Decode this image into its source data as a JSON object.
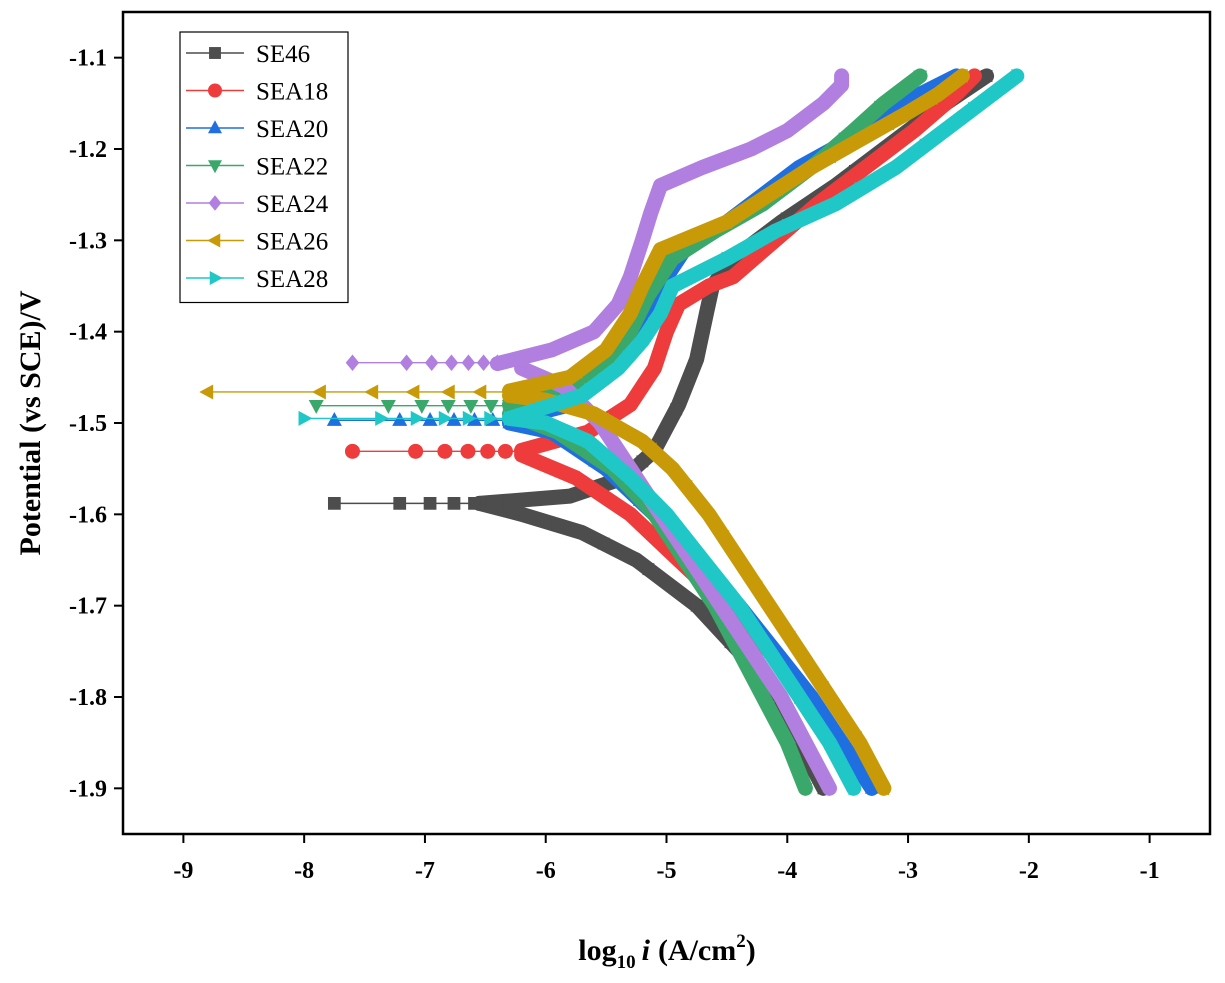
{
  "chart_data": {
    "type": "line",
    "title": "",
    "xlabel": {
      "prefix": "log",
      "sub": "10",
      "italic": "i",
      "unit_open": "(A/cm",
      "sup": "2",
      "unit_close": ")"
    },
    "ylabel": "Potential (vs SCE)/V",
    "xlim": [
      -9.5,
      -0.5
    ],
    "ylim": [
      -1.95,
      -1.05
    ],
    "x_ticks": [
      -9,
      -8,
      -7,
      -6,
      -5,
      -4,
      -3,
      -2,
      -1
    ],
    "x_tick_labels": [
      "-9",
      "-8",
      "-7",
      "-6",
      "-5",
      "-4",
      "-3",
      "-2",
      "-1"
    ],
    "y_ticks": [
      -1.1,
      -1.2,
      -1.3,
      -1.4,
      -1.5,
      -1.6,
      -1.7,
      -1.8,
      -1.9
    ],
    "y_tick_labels": [
      "-1.1",
      "-1.2",
      "-1.3",
      "-1.4",
      "-1.5",
      "-1.6",
      "-1.7",
      "-1.8",
      "-1.9"
    ],
    "legend_position": "top-left",
    "series": [
      {
        "name": "SE46",
        "color": "#4d4d4d",
        "marker": "square",
        "cathodic": [
          [
            -1.9,
            -3.7
          ],
          [
            -1.85,
            -3.9
          ],
          [
            -1.8,
            -4.15
          ],
          [
            -1.75,
            -4.4
          ],
          [
            -1.7,
            -4.75
          ],
          [
            -1.65,
            -5.25
          ],
          [
            -1.62,
            -5.7
          ],
          [
            -1.6,
            -6.2
          ],
          [
            -1.588,
            -6.55
          ]
        ],
        "anodic": [
          [
            -1.588,
            -6.55
          ],
          [
            -1.58,
            -5.8
          ],
          [
            -1.56,
            -5.35
          ],
          [
            -1.53,
            -5.1
          ],
          [
            -1.48,
            -4.9
          ],
          [
            -1.43,
            -4.75
          ],
          [
            -1.38,
            -4.67
          ],
          [
            -1.35,
            -4.62
          ],
          [
            -1.32,
            -4.45
          ],
          [
            -1.28,
            -4.05
          ],
          [
            -1.24,
            -3.6
          ],
          [
            -1.2,
            -3.2
          ],
          [
            -1.16,
            -2.8
          ],
          [
            -1.12,
            -2.35
          ]
        ],
        "spike": {
          "y": -1.588,
          "x_from": -7.75,
          "x_to": -6.3
        }
      },
      {
        "name": "SEA18",
        "color": "#ee3c3c",
        "marker": "circle",
        "cathodic": [
          [
            -1.9,
            -3.3
          ],
          [
            -1.85,
            -3.55
          ],
          [
            -1.8,
            -3.85
          ],
          [
            -1.75,
            -4.15
          ],
          [
            -1.7,
            -4.5
          ],
          [
            -1.65,
            -4.9
          ],
          [
            -1.6,
            -5.3
          ],
          [
            -1.56,
            -5.75
          ],
          [
            -1.535,
            -6.2
          ]
        ],
        "anodic": [
          [
            -1.53,
            -6.2
          ],
          [
            -1.51,
            -5.65
          ],
          [
            -1.48,
            -5.3
          ],
          [
            -1.44,
            -5.1
          ],
          [
            -1.4,
            -5.0
          ],
          [
            -1.37,
            -4.9
          ],
          [
            -1.35,
            -4.65
          ],
          [
            -1.34,
            -4.45
          ],
          [
            -1.3,
            -4.1
          ],
          [
            -1.26,
            -3.75
          ],
          [
            -1.22,
            -3.35
          ],
          [
            -1.18,
            -2.95
          ],
          [
            -1.14,
            -2.6
          ],
          [
            -1.12,
            -2.45
          ]
        ],
        "spike": {
          "y": -1.531,
          "x_from": -7.6,
          "x_to": -6.2
        }
      },
      {
        "name": "SEA20",
        "color": "#1f6fe0",
        "marker": "triangle-up",
        "cathodic": [
          [
            -1.9,
            -3.3
          ],
          [
            -1.85,
            -3.55
          ],
          [
            -1.8,
            -3.8
          ],
          [
            -1.75,
            -4.1
          ],
          [
            -1.7,
            -4.4
          ],
          [
            -1.65,
            -4.75
          ],
          [
            -1.6,
            -5.1
          ],
          [
            -1.55,
            -5.5
          ],
          [
            -1.51,
            -5.95
          ],
          [
            -1.5,
            -6.3
          ]
        ],
        "anodic": [
          [
            -1.497,
            -6.3
          ],
          [
            -1.48,
            -5.8
          ],
          [
            -1.45,
            -5.5
          ],
          [
            -1.42,
            -5.3
          ],
          [
            -1.38,
            -5.15
          ],
          [
            -1.34,
            -5.0
          ],
          [
            -1.31,
            -4.85
          ],
          [
            -1.29,
            -4.6
          ],
          [
            -1.26,
            -4.3
          ],
          [
            -1.22,
            -3.9
          ],
          [
            -1.18,
            -3.35
          ],
          [
            -1.14,
            -2.9
          ],
          [
            -1.12,
            -2.6
          ]
        ],
        "spike": {
          "y": -1.497,
          "x_from": -7.75,
          "x_to": -6.3
        }
      },
      {
        "name": "SEA22",
        "color": "#3aa86a",
        "marker": "triangle-down",
        "cathodic": [
          [
            -1.9,
            -3.85
          ],
          [
            -1.85,
            -4.0
          ],
          [
            -1.8,
            -4.2
          ],
          [
            -1.75,
            -4.4
          ],
          [
            -1.7,
            -4.6
          ],
          [
            -1.65,
            -4.85
          ],
          [
            -1.6,
            -5.1
          ],
          [
            -1.55,
            -5.45
          ],
          [
            -1.51,
            -5.9
          ],
          [
            -1.49,
            -6.3
          ]
        ],
        "anodic": [
          [
            -1.48,
            -6.3
          ],
          [
            -1.46,
            -5.8
          ],
          [
            -1.44,
            -5.5
          ],
          [
            -1.4,
            -5.3
          ],
          [
            -1.36,
            -5.15
          ],
          [
            -1.32,
            -4.95
          ],
          [
            -1.29,
            -4.6
          ],
          [
            -1.26,
            -4.2
          ],
          [
            -1.22,
            -3.8
          ],
          [
            -1.18,
            -3.45
          ],
          [
            -1.15,
            -3.2
          ],
          [
            -1.12,
            -2.9
          ]
        ],
        "spike": {
          "y": -1.481,
          "x_from": -7.9,
          "x_to": -6.3
        }
      },
      {
        "name": "SEA24",
        "color": "#b07fe0",
        "marker": "diamond",
        "cathodic": [
          [
            -1.9,
            -3.65
          ],
          [
            -1.85,
            -3.85
          ],
          [
            -1.8,
            -4.05
          ],
          [
            -1.75,
            -4.3
          ],
          [
            -1.7,
            -4.55
          ],
          [
            -1.65,
            -4.8
          ],
          [
            -1.6,
            -5.05
          ],
          [
            -1.55,
            -5.3
          ],
          [
            -1.5,
            -5.55
          ],
          [
            -1.46,
            -5.85
          ],
          [
            -1.44,
            -6.2
          ]
        ],
        "anodic": [
          [
            -1.435,
            -6.4
          ],
          [
            -1.42,
            -5.95
          ],
          [
            -1.4,
            -5.6
          ],
          [
            -1.37,
            -5.4
          ],
          [
            -1.34,
            -5.3
          ],
          [
            -1.3,
            -5.2
          ],
          [
            -1.27,
            -5.13
          ],
          [
            -1.24,
            -5.05
          ],
          [
            -1.22,
            -4.7
          ],
          [
            -1.2,
            -4.3
          ],
          [
            -1.18,
            -4.0
          ],
          [
            -1.15,
            -3.7
          ],
          [
            -1.13,
            -3.55
          ],
          [
            -1.12,
            -3.55
          ]
        ],
        "spike": {
          "y": -1.434,
          "x_from": -7.6,
          "x_to": -6.4
        }
      },
      {
        "name": "SEA26",
        "color": "#c89a08",
        "marker": "triangle-left",
        "cathodic": [
          [
            -1.9,
            -3.2
          ],
          [
            -1.85,
            -3.4
          ],
          [
            -1.8,
            -3.65
          ],
          [
            -1.75,
            -3.9
          ],
          [
            -1.7,
            -4.15
          ],
          [
            -1.65,
            -4.4
          ],
          [
            -1.6,
            -4.65
          ],
          [
            -1.55,
            -4.95
          ],
          [
            -1.52,
            -5.2
          ],
          [
            -1.49,
            -5.6
          ],
          [
            -1.475,
            -6.0
          ],
          [
            -1.47,
            -6.3
          ]
        ],
        "anodic": [
          [
            -1.465,
            -6.3
          ],
          [
            -1.45,
            -5.8
          ],
          [
            -1.42,
            -5.5
          ],
          [
            -1.38,
            -5.3
          ],
          [
            -1.35,
            -5.2
          ],
          [
            -1.31,
            -5.05
          ],
          [
            -1.28,
            -4.5
          ],
          [
            -1.25,
            -4.15
          ],
          [
            -1.22,
            -3.8
          ],
          [
            -1.19,
            -3.4
          ],
          [
            -1.16,
            -3.0
          ],
          [
            -1.14,
            -2.75
          ],
          [
            -1.12,
            -2.55
          ]
        ],
        "spike": {
          "y": -1.466,
          "x_from": -8.8,
          "x_to": -6.3
        }
      },
      {
        "name": "SEA28",
        "color": "#1fc7c7",
        "marker": "triangle-right",
        "cathodic": [
          [
            -1.9,
            -3.45
          ],
          [
            -1.85,
            -3.65
          ],
          [
            -1.8,
            -3.9
          ],
          [
            -1.75,
            -4.15
          ],
          [
            -1.7,
            -4.4
          ],
          [
            -1.65,
            -4.7
          ],
          [
            -1.6,
            -5.0
          ],
          [
            -1.56,
            -5.3
          ],
          [
            -1.52,
            -5.65
          ],
          [
            -1.5,
            -6.0
          ],
          [
            -1.495,
            -6.3
          ]
        ],
        "anodic": [
          [
            -1.495,
            -6.3
          ],
          [
            -1.47,
            -5.7
          ],
          [
            -1.44,
            -5.4
          ],
          [
            -1.41,
            -5.2
          ],
          [
            -1.38,
            -5.05
          ],
          [
            -1.35,
            -4.95
          ],
          [
            -1.32,
            -4.5
          ],
          [
            -1.29,
            -4.1
          ],
          [
            -1.26,
            -3.6
          ],
          [
            -1.22,
            -3.1
          ],
          [
            -1.18,
            -2.7
          ],
          [
            -1.15,
            -2.4
          ],
          [
            -1.12,
            -2.1
          ]
        ],
        "spike": {
          "y": -1.495,
          "x_from": -8.0,
          "x_to": -6.3
        }
      }
    ]
  }
}
